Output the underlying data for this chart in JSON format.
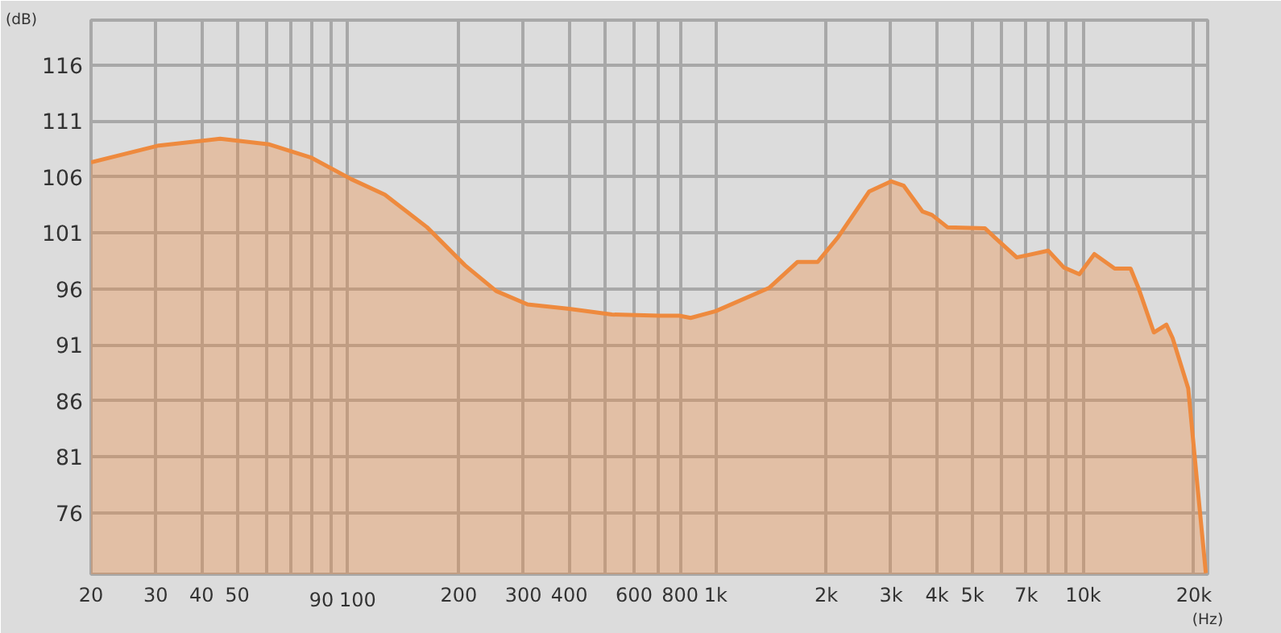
{
  "chart_data": {
    "type": "area",
    "xlabel": "(Hz)",
    "ylabel": "(dB)",
    "log": "x",
    "grid": true,
    "xlim": [
      20,
      21800
    ],
    "ylim": [
      70.5,
      120
    ],
    "xticks": [
      20,
      30,
      40,
      50,
      {
        "value": 60,
        "label": null
      },
      {
        "value": 70,
        "label": null
      },
      {
        "value": 80,
        "label": null
      },
      90,
      100,
      200,
      300,
      400,
      {
        "value": 500,
        "label": null
      },
      600,
      {
        "value": 700,
        "label": null
      },
      800,
      {
        "value": 1000,
        "label": "1k"
      },
      {
        "value": 2000,
        "label": "2k"
      },
      {
        "value": 3000,
        "label": "3k"
      },
      {
        "value": 4000,
        "label": "4k"
      },
      {
        "value": 5000,
        "label": "5k"
      },
      {
        "value": 6000,
        "label": null
      },
      {
        "value": 7000,
        "label": "7k"
      },
      {
        "value": 8000,
        "label": null
      },
      {
        "value": 9000,
        "label": null
      },
      {
        "value": 10000,
        "label": "10k"
      },
      {
        "value": 20000,
        "label": "20k"
      }
    ],
    "yticks": [
      76,
      81,
      86,
      91,
      96,
      101,
      106,
      111,
      116
    ],
    "x": [
      20,
      30.6,
      44.9,
      61.1,
      79.6,
      102,
      126,
      164,
      208,
      253,
      308,
      400,
      522,
      702,
      797,
      855,
      1000,
      1401,
      1671,
      1895,
      2152,
      2617,
      3000,
      3249,
      3655,
      3876,
      4271,
      5405,
      5736,
      6594,
      8030,
      8855,
      9760,
      10720,
      12180,
      13450,
      14120,
      15560,
      16830,
      17500,
      19300,
      20500,
      21550
    ],
    "series": [
      {
        "color": "#ee8a3e",
        "values": [
          107.3,
          108.8,
          109.4,
          108.9,
          107.7,
          105.8,
          104.4,
          101.5,
          98.1,
          95.8,
          94.6,
          94.2,
          93.7,
          93.6,
          93.6,
          93.4,
          94.0,
          96.1,
          98.4,
          98.4,
          100.6,
          104.7,
          105.6,
          105.2,
          102.9,
          102.6,
          101.5,
          101.4,
          100.6,
          98.8,
          99.4,
          97.9,
          97.3,
          99.1,
          97.8,
          97.8,
          96.1,
          92.1,
          92.8,
          91.6,
          87.1,
          78.0,
          70.6
        ]
      }
    ]
  }
}
